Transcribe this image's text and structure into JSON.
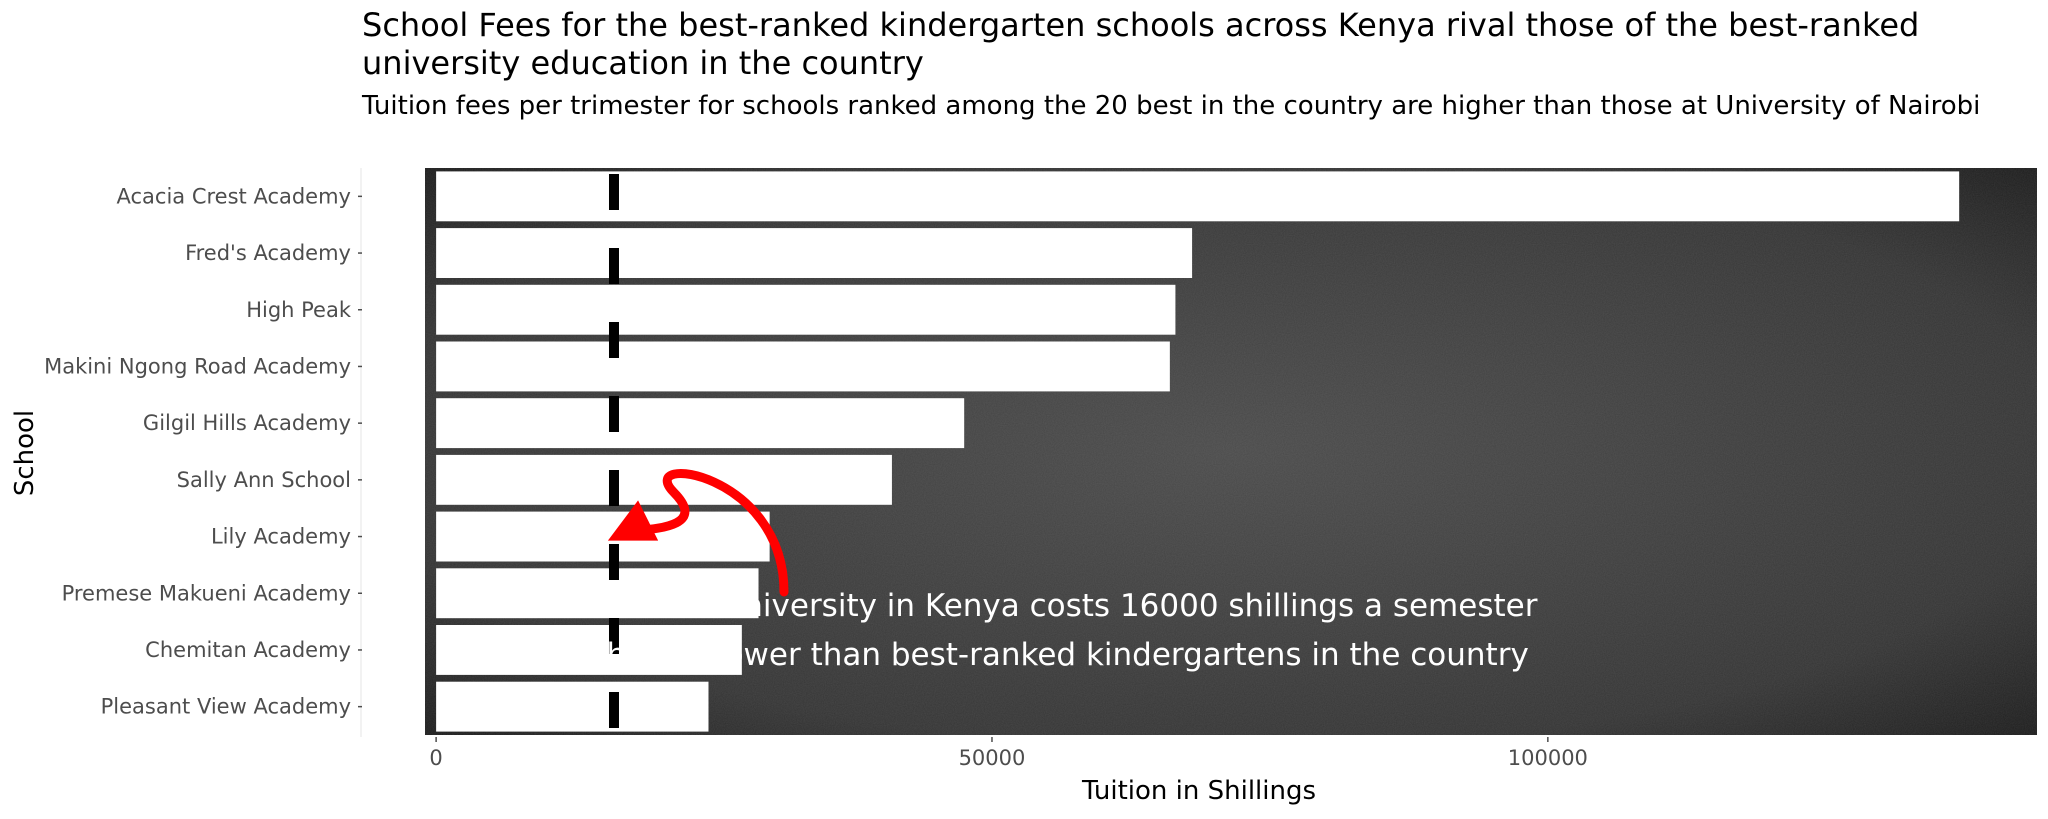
{
  "chart_data": {
    "type": "bar",
    "orientation": "horizontal",
    "title": "School Fees for the best-ranked kindergarten schools across Kenya rival those of the best-ranked university education in the country",
    "subtitle": "Tuition fees per trimester for schools ranked among the 20 best in the country are higher than those at University of Nairobi",
    "xlabel": "Tuition in Shillings",
    "ylabel": "School",
    "categories": [
      "Acacia Crest Academy",
      "Fred's Academy",
      "High Peak",
      "Makini Ngong Road Academy",
      "Gilgil Hills Academy",
      "Sally Ann School",
      "Lily Academy",
      "Premese Makueni Academy",
      "Chemitan Academy",
      "Pleasant View Academy"
    ],
    "values": [
      137000,
      68000,
      66500,
      66000,
      47500,
      41000,
      30000,
      29000,
      27500,
      24500
    ],
    "xlim": [
      -1000,
      144000
    ],
    "x_ticks": [
      "0",
      "50000",
      "100000"
    ],
    "x_tick_values": [
      0,
      50000,
      100000
    ],
    "reference_line": {
      "value": 16000,
      "style": "dashed",
      "color": "#000000"
    },
    "annotation": {
      "lines": [
        "best-ranked university in Kenya costs 16000 shillings a semester",
        "which is lower than best-ranked kindergartens in the country"
      ],
      "arrow_color": "#ff0000"
    },
    "bar_color": "#ffffff",
    "panel_background": "chalkboard",
    "grid": false
  }
}
